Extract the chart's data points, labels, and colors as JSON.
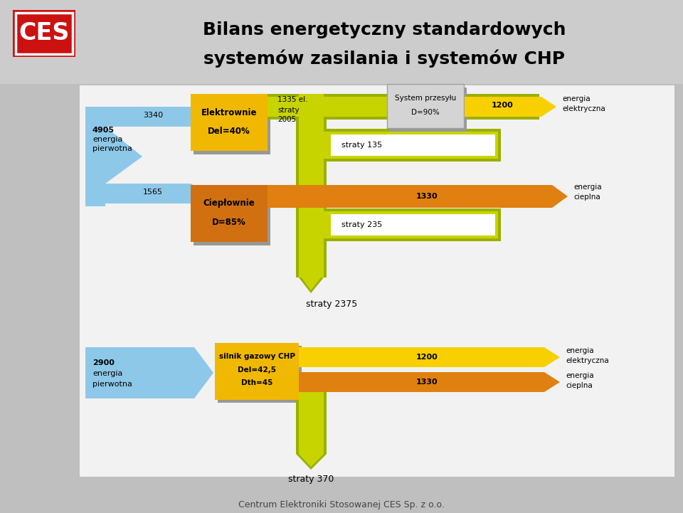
{
  "title_line1": "Bilans energetyczny standardowych",
  "title_line2": "systemów zasilania i systemów CHP",
  "bg_color": "#c0bfbf",
  "colors": {
    "blue_flow": "#8ec8e8",
    "yellow_box": "#f0b800",
    "orange_box": "#d07010",
    "yellow_green_dark": "#9ab000",
    "yellow_green_light": "#c8d400",
    "orange_flow": "#e08010",
    "yellow_flow": "#f8d000",
    "gray_box_fill": "#d4d4d4",
    "gray_box_border": "#a0a0a0",
    "white_box": "#ffffff",
    "red_logo": "#cc1111",
    "shadow": "#989898",
    "header_bg": "#cccccc",
    "diagram_bg": "#f2f2f2"
  },
  "footer": "Centrum Elektroniki Stosowanej CES Sp. z o.o."
}
